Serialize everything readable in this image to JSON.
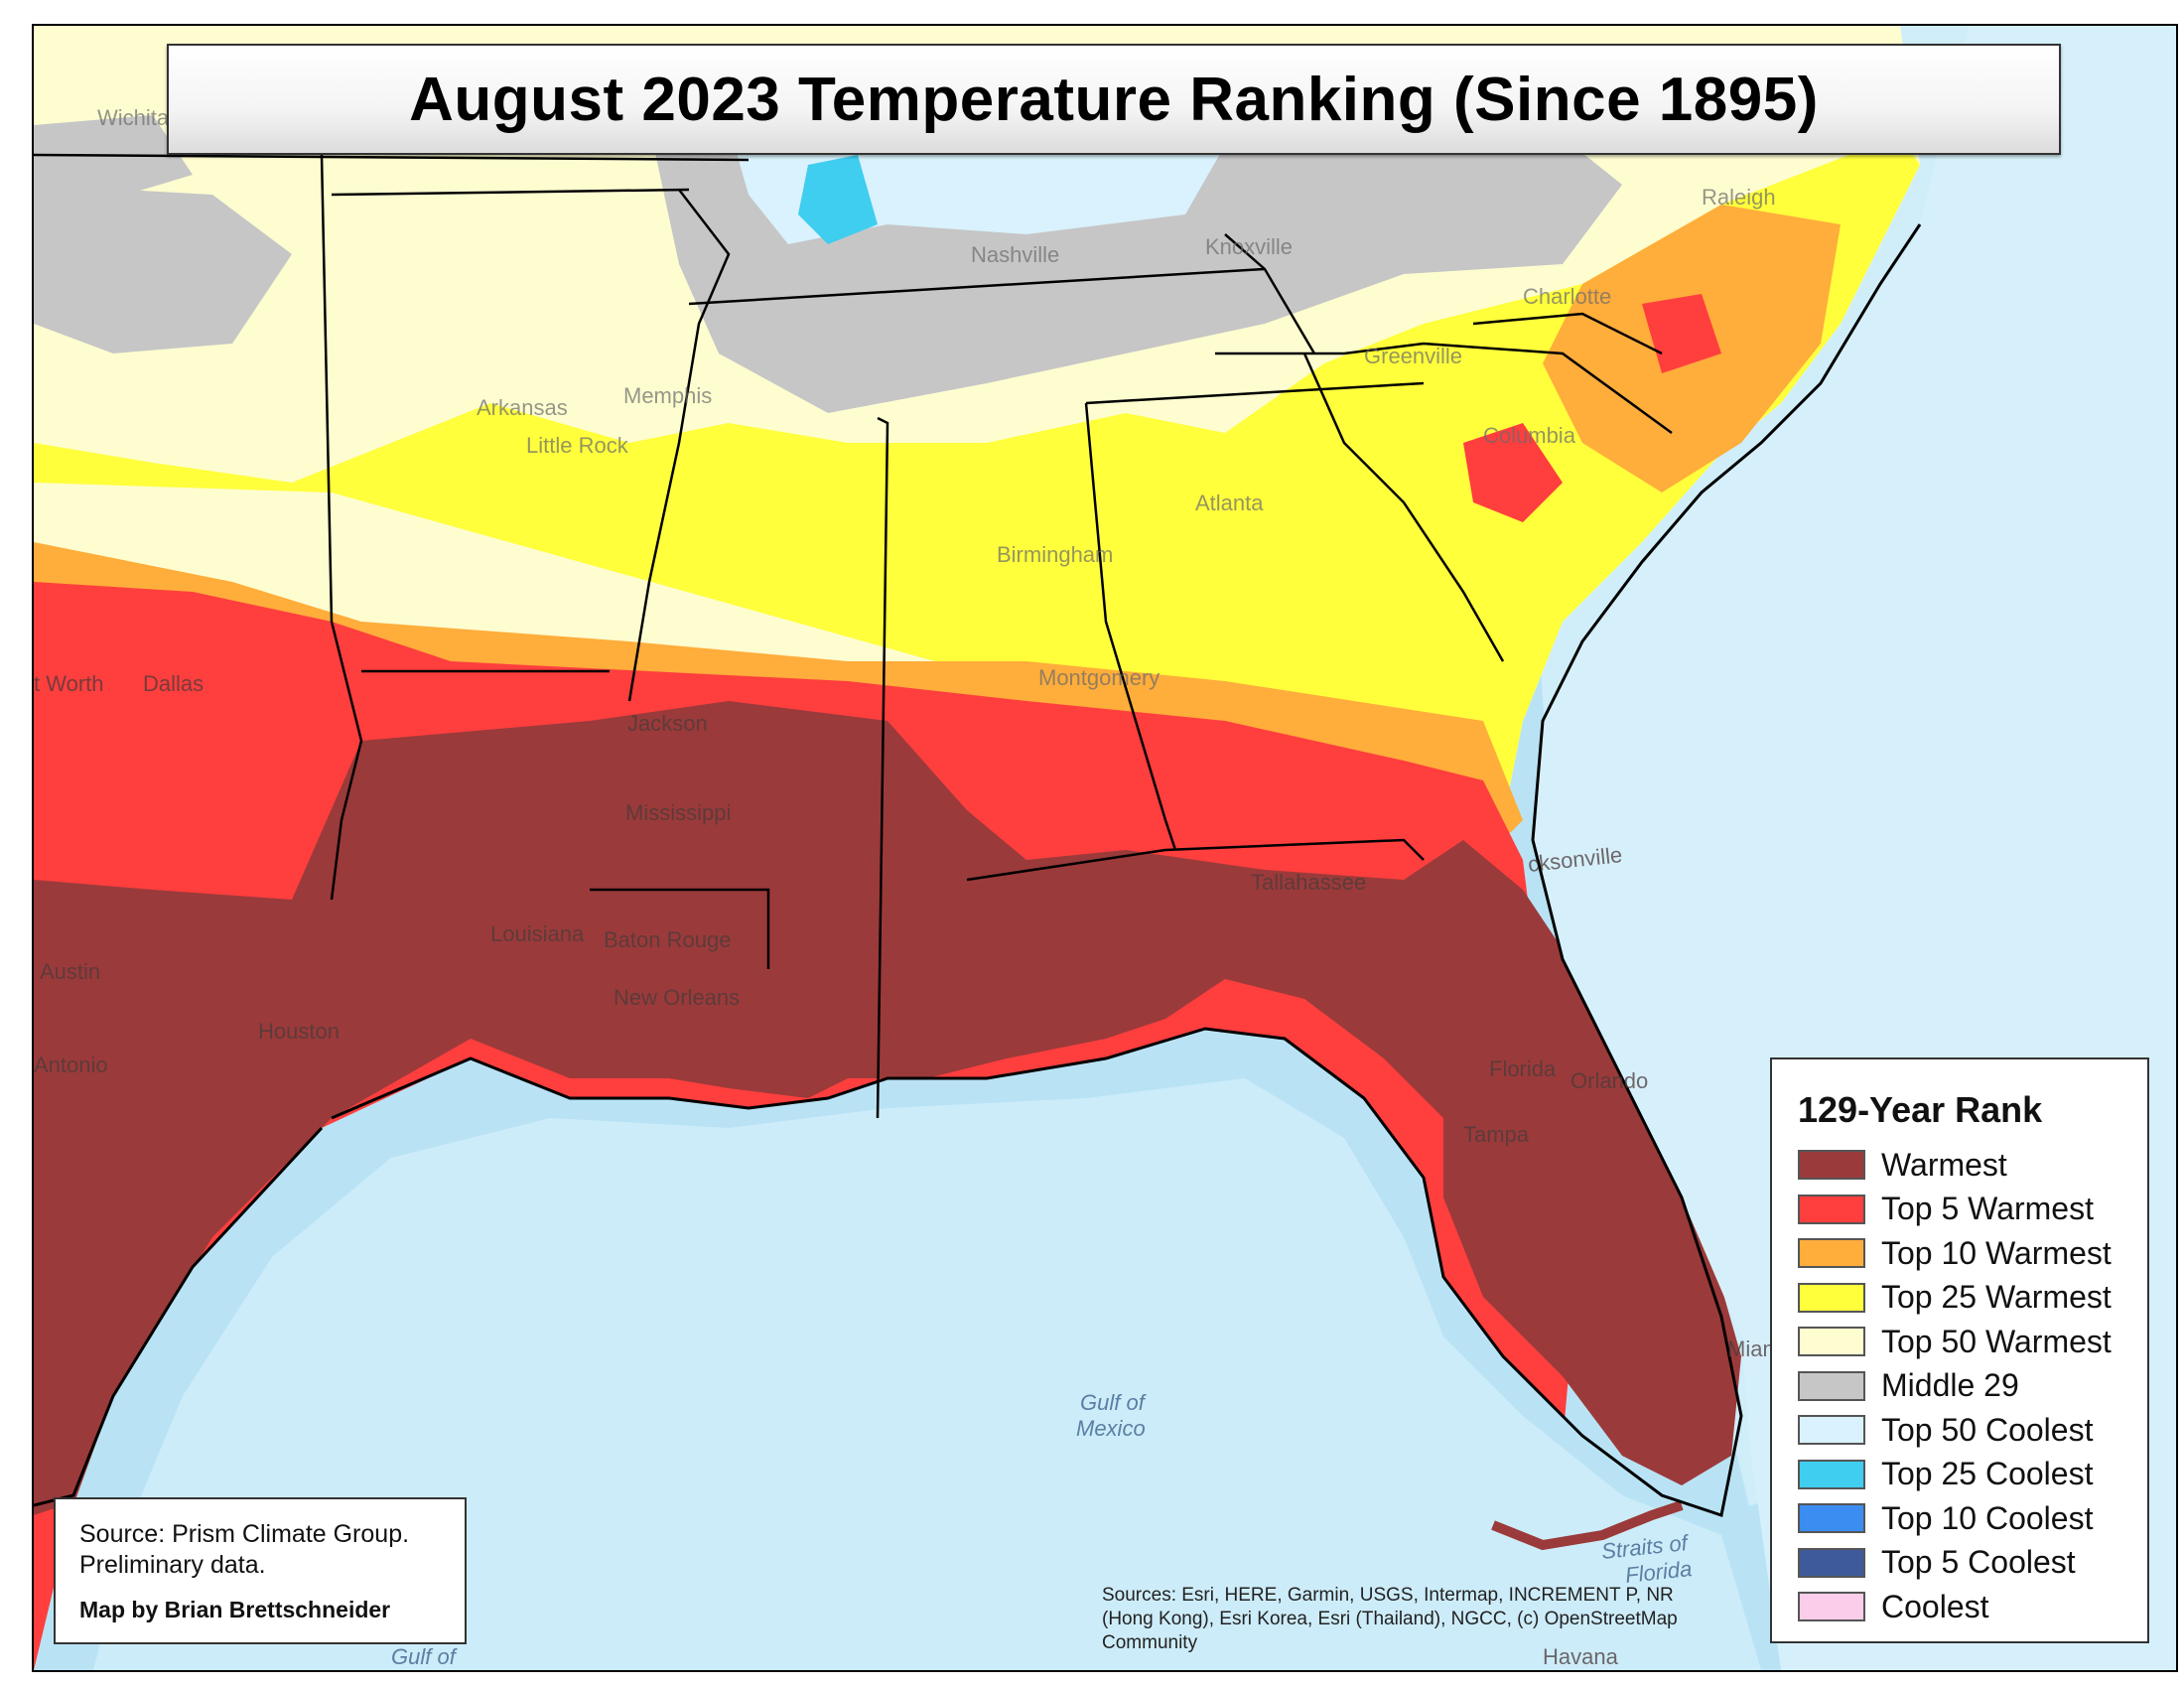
{
  "title": "August 2023 Temperature Ranking (Since 1895)",
  "legend": {
    "title": "129-Year Rank",
    "items": [
      {
        "label": "Warmest",
        "color": "#9b3a3a"
      },
      {
        "label": "Top 5 Warmest",
        "color": "#ff3e3e"
      },
      {
        "label": "Top 10 Warmest",
        "color": "#ffad3b"
      },
      {
        "label": "Top 25 Warmest",
        "color": "#ffff3c"
      },
      {
        "label": "Top 50 Warmest",
        "color": "#fefdd0"
      },
      {
        "label": "Middle 29",
        "color": "#c6c6c6"
      },
      {
        "label": "Top 50 Coolest",
        "color": "#d9f2fd"
      },
      {
        "label": "Top 25 Coolest",
        "color": "#3fcdf0"
      },
      {
        "label": "Top 10 Coolest",
        "color": "#3c8df2"
      },
      {
        "label": "Top 5 Coolest",
        "color": "#3e5a9a"
      },
      {
        "label": "Coolest",
        "color": "#fbcdea"
      }
    ]
  },
  "source": {
    "line1": "Source: Prism Climate Group.",
    "line2": "Preliminary data.",
    "credit": "Map by Brian Brettschneider"
  },
  "attribution": {
    "line1": "Sources: Esri, HERE, Garmin, USGS, Intermap, INCREMENT P, NR",
    "line2": "(Hong Kong), Esri Korea, Esri (Thailand), NGCC, (c) OpenStreetMap",
    "line3": "Community"
  },
  "cities": {
    "wichita": "Wichita",
    "ftworth": "t Worth",
    "dallas": "Dallas",
    "austin": "Austin",
    "antonio": "Antonio",
    "houston": "Houston",
    "little_rock": "Little Rock",
    "arkansas": "Arkansas",
    "memphis": "Memphis",
    "jackson": "Jackson",
    "mississippi": "Mississippi",
    "louisiana": "Louisiana",
    "baton_rouge": "Baton Rouge",
    "new_orleans": "New Orleans",
    "nashville": "Nashville",
    "knoxville": "Knoxville",
    "birmingham": "Birmingham",
    "montgomery": "Montgomery",
    "atlanta": "Atlanta",
    "tallahassee": "Tallahassee",
    "jacksonville": "cksonville",
    "orlando": "Orlando",
    "florida": "Florida",
    "tampa": "Tampa",
    "miami": "Miami",
    "columbia": "Columbia",
    "charlotte": "Charlotte",
    "raleigh": "Raleigh",
    "greenville": "Greenville",
    "havana": "Havana"
  },
  "water": {
    "gulf1": "Gulf of",
    "gulf2": "Mexico",
    "straits1": "Straits of",
    "straits2": "Florida",
    "gulf_bottom": "Gulf of"
  },
  "colors": {
    "water": "#b9e3f5",
    "shelf": "#d6f0fb",
    "deep": "#8fcde9"
  }
}
